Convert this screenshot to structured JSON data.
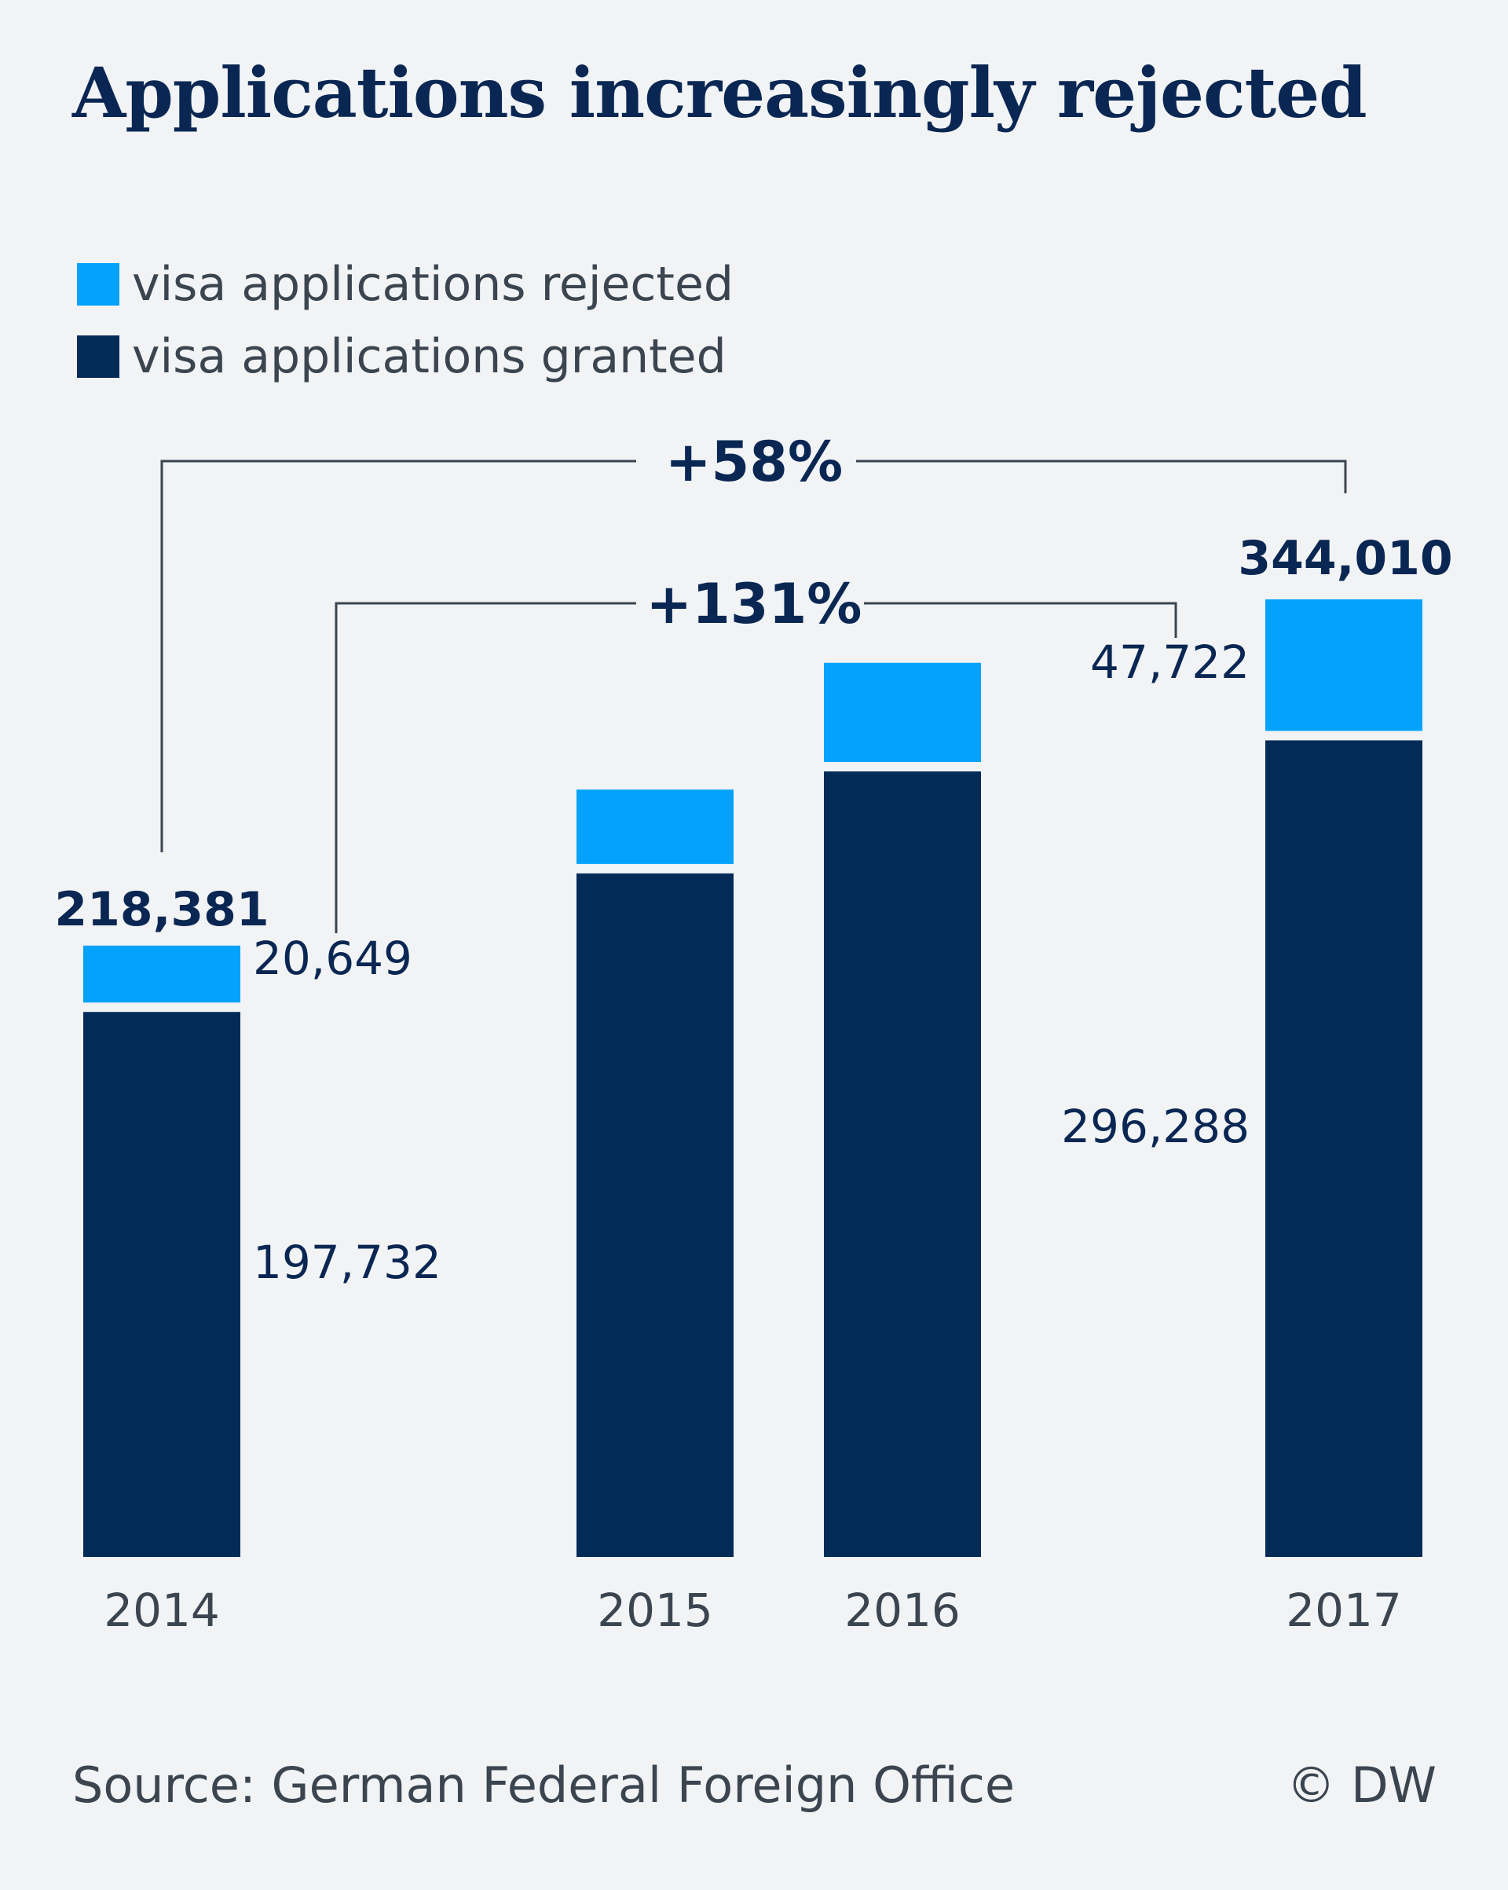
{
  "title": "Applications increasingly rejected",
  "source": "Source: German Federal Foreign Office",
  "credit": "© DW",
  "colors": {
    "background": "#f1f3f5",
    "rejected": "#05a2fb",
    "granted": "#022b58",
    "text_dark": "#0a2753",
    "text_muted": "#3b4550",
    "connector": "#3b4550"
  },
  "chart_data": {
    "type": "bar",
    "stacked": true,
    "title": "Applications increasingly rejected",
    "categories": [
      "2014",
      "2015",
      "2016",
      "2017"
    ],
    "series": [
      {
        "name": "visa applications granted",
        "values": [
          197732,
          248000,
          285000,
          296288
        ]
      },
      {
        "name": "visa applications rejected",
        "values": [
          20649,
          27000,
          36000,
          47722
        ]
      }
    ],
    "totals": [
      218381,
      275000,
      321000,
      344010
    ],
    "ylim": [
      0,
      350000
    ],
    "grid": false,
    "legend_position": "top-left",
    "data_labels": {
      "totals": [
        "218,381",
        "",
        "",
        "344,010"
      ],
      "granted": [
        "197,732",
        "",
        "",
        "296,288"
      ],
      "rejected": [
        "20,649",
        "",
        "",
        "47,722"
      ]
    },
    "annotations": [
      {
        "text": "+58%",
        "from": "2014",
        "to": "2017",
        "applies_to": "total"
      },
      {
        "text": "+131%",
        "from": "2014",
        "to": "2017",
        "applies_to": "rejected"
      }
    ]
  }
}
